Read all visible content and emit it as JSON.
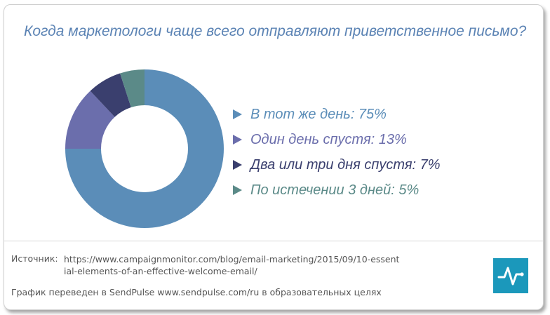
{
  "title": "Когда маркетологи чаще всего отправляют приветственное письмо?",
  "chart_data": {
    "type": "pie",
    "categories": [
      "В тот же день",
      "Один день спустя",
      "Два или три дня спустя",
      "По истечении 3 дней"
    ],
    "values": [
      75,
      13,
      7,
      5
    ],
    "colors": [
      "#5b8db8",
      "#6b6eac",
      "#3a3f6e",
      "#5b8a88"
    ],
    "legend_labels": [
      "В тот же день: 75%",
      "Один день спустя: 13%",
      "Два или три дня спустя: 7%",
      "По истечении 3 дней: 5%"
    ],
    "legend_placement": "right",
    "donut": true
  },
  "footer": {
    "source_label": "Источник:",
    "source_url": "https://www.campaignmonitor.com/blog/email-marketing/2015/09/10-essential-elements-of-an-effective-welcome-email/",
    "note": "График переведен в SendPulse www.sendpulse.com/ru в образовательных целях"
  },
  "logo_icon": "sendpulse-logo-icon"
}
